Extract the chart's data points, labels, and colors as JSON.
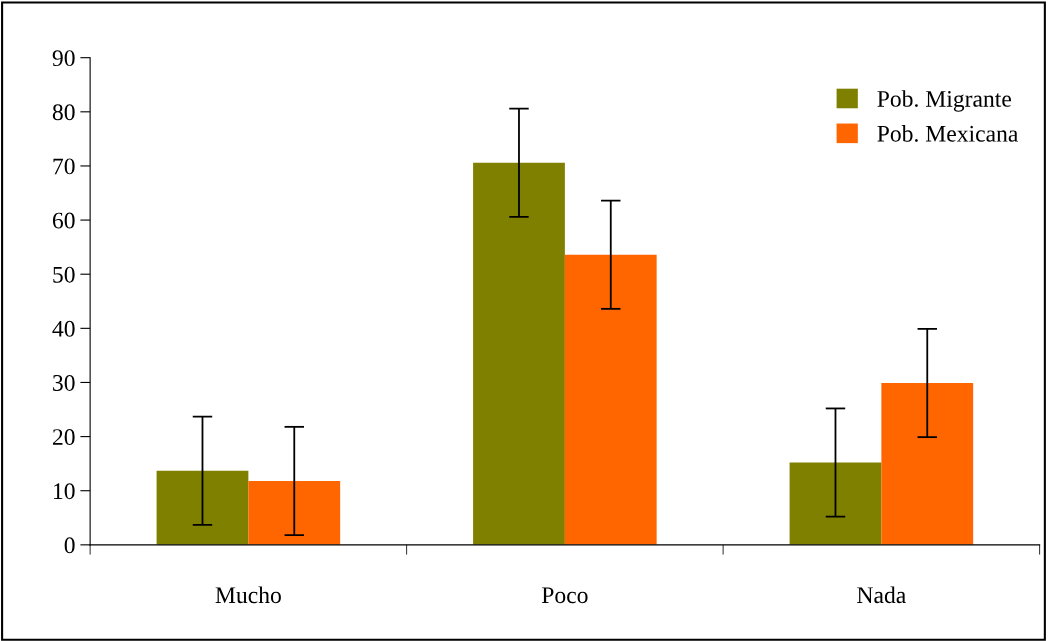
{
  "chart_data": {
    "type": "bar",
    "categories": [
      "Mucho",
      "Poco",
      "Nada"
    ],
    "series": [
      {
        "name": "Pob. Migrante",
        "color": "#808000",
        "values": [
          13.7,
          70.6,
          15.2
        ],
        "errors": [
          10,
          10,
          10
        ]
      },
      {
        "name": "Pob. Mexicana",
        "color": "#ff6600",
        "values": [
          11.8,
          53.6,
          29.9
        ],
        "errors": [
          10,
          10,
          10
        ]
      }
    ],
    "ylim": [
      0,
      90
    ],
    "yticks": [
      0,
      10,
      20,
      30,
      40,
      50,
      60,
      70,
      80,
      90
    ],
    "grid": false,
    "legend": "top right"
  }
}
